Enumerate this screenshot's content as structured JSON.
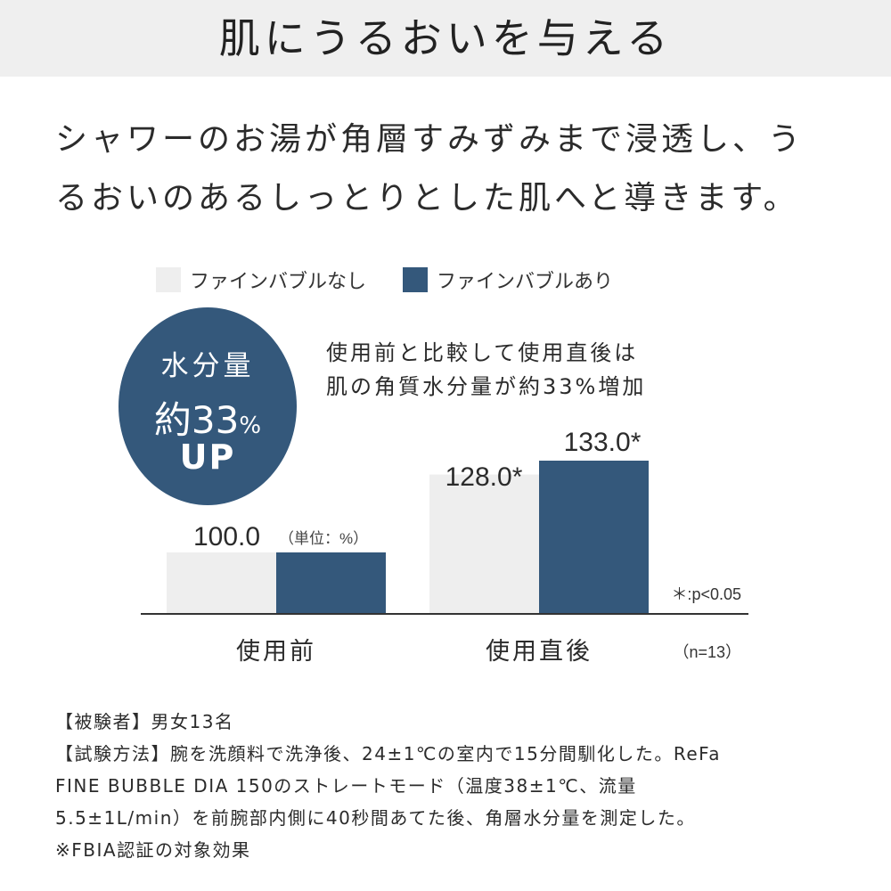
{
  "header": {
    "title": "肌にうるおいを与える"
  },
  "description": {
    "line1": "シャワーのお湯が角層すみずみまで浸透し、う",
    "line2": "るおいのあるしっとりとした肌へと導きます。"
  },
  "badge": {
    "line1": "水分量",
    "prefix": "約",
    "number": "33",
    "percent": "%",
    "line3": "UP"
  },
  "annotation": {
    "line1": "使用前と比較して使用直後は",
    "line2": "肌の角質水分量が約33%増加"
  },
  "colors": {
    "without": "#eeeeee",
    "with": "#34587b",
    "badge": "#34587b",
    "header_band": "#efefef"
  },
  "chart_data": {
    "type": "bar",
    "categories": [
      "使用前",
      "使用直後"
    ],
    "series": [
      {
        "name": "ファインバブルなし",
        "values": [
          100.0,
          128.0
        ],
        "color": "#eeeeee"
      },
      {
        "name": "ファインバブルあり",
        "values": [
          100.0,
          133.0
        ],
        "color": "#34587b"
      }
    ],
    "data_labels": [
      {
        "category": "使用前",
        "text": "100.0"
      },
      {
        "category": "使用直後",
        "series": "ファインバブルなし",
        "text": "128.0*"
      },
      {
        "category": "使用直後",
        "series": "ファインバブルあり",
        "text": "133.0*"
      }
    ],
    "unit_label": "（単位：%）",
    "significance_note": "＊:p<0.05",
    "sample_note": "（n=13）",
    "legend": "top-left",
    "grid": false
  },
  "notes": {
    "line1": "【被験者】男女13名",
    "line2": "【試験方法】腕を洗顔料で洗浄後、24±1℃の室内で15分間馴化した。ReFa",
    "line3": "FINE BUBBLE DIA 150のストレートモード（温度38±1℃、流量",
    "line4": "5.5±1L/min）を前腕部内側に40秒間あてた後、角層水分量を測定した。",
    "line5": "※FBIA認証の対象効果"
  }
}
